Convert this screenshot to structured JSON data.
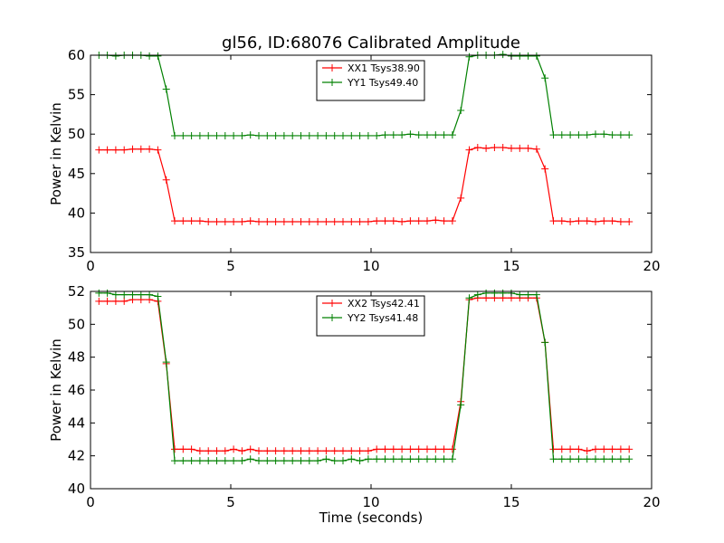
{
  "figure": {
    "title": "gl56, ID:68076 Calibrated Amplitude"
  },
  "chart_data": [
    {
      "type": "line",
      "title": "gl56, ID:68076 Calibrated Amplitude",
      "xlabel": "",
      "ylabel": "Power in Kelvin",
      "xlim": [
        0,
        20
      ],
      "ylim": [
        35,
        60
      ],
      "xticks": [
        0,
        5,
        10,
        15,
        20
      ],
      "yticks": [
        35,
        40,
        45,
        50,
        55,
        60
      ],
      "legend_position": "top-center",
      "grid": false,
      "series": [
        {
          "name": "XX1 Tsys38.90",
          "color": "#ff0000",
          "marker": "plus",
          "x": [
            0.3,
            0.6,
            0.9,
            1.2,
            1.5,
            1.8,
            2.1,
            2.4,
            2.7,
            3.0,
            3.3,
            3.6,
            3.9,
            4.2,
            4.5,
            4.8,
            5.1,
            5.4,
            5.7,
            6.0,
            6.3,
            6.6,
            6.9,
            7.2,
            7.5,
            7.8,
            8.1,
            8.4,
            8.7,
            9.0,
            9.3,
            9.6,
            9.9,
            10.2,
            10.5,
            10.8,
            11.1,
            11.4,
            11.7,
            12.0,
            12.3,
            12.6,
            12.9,
            13.2,
            13.5,
            13.8,
            14.1,
            14.4,
            14.7,
            15.0,
            15.3,
            15.6,
            15.9,
            16.2,
            16.5,
            16.8,
            17.1,
            17.4,
            17.7,
            18.0,
            18.3,
            18.6,
            18.9,
            19.2
          ],
          "y": [
            48.0,
            48.0,
            48.0,
            48.0,
            48.1,
            48.1,
            48.1,
            48.0,
            44.2,
            39.0,
            39.0,
            39.0,
            39.0,
            38.9,
            38.9,
            38.9,
            38.9,
            38.9,
            39.0,
            38.9,
            38.9,
            38.9,
            38.9,
            38.9,
            38.9,
            38.9,
            38.9,
            38.9,
            38.9,
            38.9,
            38.9,
            38.9,
            38.9,
            39.0,
            39.0,
            39.0,
            38.9,
            39.0,
            39.0,
            39.0,
            39.1,
            39.0,
            39.0,
            41.9,
            48.0,
            48.3,
            48.2,
            48.3,
            48.3,
            48.2,
            48.2,
            48.2,
            48.1,
            45.6,
            39.0,
            39.0,
            38.9,
            39.0,
            39.0,
            38.9,
            39.0,
            39.0,
            38.9,
            38.9
          ]
        },
        {
          "name": "YY1 Tsys49.40",
          "color": "#008000",
          "marker": "plus",
          "x": [
            0.3,
            0.6,
            0.9,
            1.2,
            1.5,
            1.8,
            2.1,
            2.4,
            2.7,
            3.0,
            3.3,
            3.6,
            3.9,
            4.2,
            4.5,
            4.8,
            5.1,
            5.4,
            5.7,
            6.0,
            6.3,
            6.6,
            6.9,
            7.2,
            7.5,
            7.8,
            8.1,
            8.4,
            8.7,
            9.0,
            9.3,
            9.6,
            9.9,
            10.2,
            10.5,
            10.8,
            11.1,
            11.4,
            11.7,
            12.0,
            12.3,
            12.6,
            12.9,
            13.2,
            13.5,
            13.8,
            14.1,
            14.4,
            14.7,
            15.0,
            15.3,
            15.6,
            15.9,
            16.2,
            16.5,
            16.8,
            17.1,
            17.4,
            17.7,
            18.0,
            18.3,
            18.6,
            18.9,
            19.2
          ],
          "y": [
            60.0,
            60.0,
            59.9,
            60.0,
            60.0,
            60.0,
            59.9,
            59.9,
            55.7,
            49.8,
            49.8,
            49.8,
            49.8,
            49.8,
            49.8,
            49.8,
            49.8,
            49.8,
            49.9,
            49.8,
            49.8,
            49.8,
            49.8,
            49.8,
            49.8,
            49.8,
            49.8,
            49.8,
            49.8,
            49.8,
            49.8,
            49.8,
            49.8,
            49.8,
            49.9,
            49.9,
            49.9,
            50.0,
            49.9,
            49.9,
            49.9,
            49.9,
            49.9,
            53.0,
            59.8,
            60.0,
            60.0,
            60.0,
            60.1,
            59.9,
            59.9,
            59.9,
            59.9,
            57.1,
            49.9,
            49.9,
            49.9,
            49.9,
            49.9,
            50.0,
            50.0,
            49.9,
            49.9,
            49.9
          ]
        }
      ]
    },
    {
      "type": "line",
      "title": "",
      "xlabel": "Time (seconds)",
      "ylabel": "Power in Kelvin",
      "xlim": [
        0,
        20
      ],
      "ylim": [
        40,
        52
      ],
      "xticks": [
        0,
        5,
        10,
        15,
        20
      ],
      "yticks": [
        40,
        42,
        44,
        46,
        48,
        50,
        52
      ],
      "legend_position": "top-center",
      "grid": false,
      "series": [
        {
          "name": "XX2 Tsys42.41",
          "color": "#ff0000",
          "marker": "plus",
          "x": [
            0.3,
            0.6,
            0.9,
            1.2,
            1.5,
            1.8,
            2.1,
            2.4,
            2.7,
            3.0,
            3.3,
            3.6,
            3.9,
            4.2,
            4.5,
            4.8,
            5.1,
            5.4,
            5.7,
            6.0,
            6.3,
            6.6,
            6.9,
            7.2,
            7.5,
            7.8,
            8.1,
            8.4,
            8.7,
            9.0,
            9.3,
            9.6,
            9.9,
            10.2,
            10.5,
            10.8,
            11.1,
            11.4,
            11.7,
            12.0,
            12.3,
            12.6,
            12.9,
            13.2,
            13.5,
            13.8,
            14.1,
            14.4,
            14.7,
            15.0,
            15.3,
            15.6,
            15.9,
            16.2,
            16.5,
            16.8,
            17.1,
            17.4,
            17.7,
            18.0,
            18.3,
            18.6,
            18.9,
            19.2
          ],
          "y": [
            51.4,
            51.4,
            51.4,
            51.4,
            51.5,
            51.5,
            51.5,
            51.4,
            47.6,
            42.4,
            42.4,
            42.4,
            42.3,
            42.3,
            42.3,
            42.3,
            42.4,
            42.3,
            42.4,
            42.3,
            42.3,
            42.3,
            42.3,
            42.3,
            42.3,
            42.3,
            42.3,
            42.3,
            42.3,
            42.3,
            42.3,
            42.3,
            42.3,
            42.4,
            42.4,
            42.4,
            42.4,
            42.4,
            42.4,
            42.4,
            42.4,
            42.4,
            42.4,
            45.3,
            51.5,
            51.6,
            51.6,
            51.6,
            51.6,
            51.6,
            51.6,
            51.6,
            51.6,
            48.9,
            42.4,
            42.4,
            42.4,
            42.4,
            42.3,
            42.4,
            42.4,
            42.4,
            42.4,
            42.4
          ]
        },
        {
          "name": "YY2 Tsys41.48",
          "color": "#008000",
          "marker": "plus",
          "x": [
            0.3,
            0.6,
            0.9,
            1.2,
            1.5,
            1.8,
            2.1,
            2.4,
            2.7,
            3.0,
            3.3,
            3.6,
            3.9,
            4.2,
            4.5,
            4.8,
            5.1,
            5.4,
            5.7,
            6.0,
            6.3,
            6.6,
            6.9,
            7.2,
            7.5,
            7.8,
            8.1,
            8.4,
            8.7,
            9.0,
            9.3,
            9.6,
            9.9,
            10.2,
            10.5,
            10.8,
            11.1,
            11.4,
            11.7,
            12.0,
            12.3,
            12.6,
            12.9,
            13.2,
            13.5,
            13.8,
            14.1,
            14.4,
            14.7,
            15.0,
            15.3,
            15.6,
            15.9,
            16.2,
            16.5,
            16.8,
            17.1,
            17.4,
            17.7,
            18.0,
            18.3,
            18.6,
            18.9,
            19.2
          ],
          "y": [
            51.9,
            51.9,
            51.8,
            51.8,
            51.8,
            51.8,
            51.8,
            51.7,
            47.7,
            41.7,
            41.7,
            41.7,
            41.7,
            41.7,
            41.7,
            41.7,
            41.7,
            41.7,
            41.8,
            41.7,
            41.7,
            41.7,
            41.7,
            41.7,
            41.7,
            41.7,
            41.7,
            41.8,
            41.7,
            41.7,
            41.8,
            41.7,
            41.8,
            41.8,
            41.8,
            41.8,
            41.8,
            41.8,
            41.8,
            41.8,
            41.8,
            41.8,
            41.8,
            45.1,
            51.6,
            51.8,
            51.9,
            51.9,
            51.9,
            51.9,
            51.8,
            51.8,
            51.8,
            48.9,
            41.8,
            41.8,
            41.8,
            41.8,
            41.8,
            41.8,
            41.8,
            41.8,
            41.8,
            41.8
          ]
        }
      ]
    }
  ]
}
